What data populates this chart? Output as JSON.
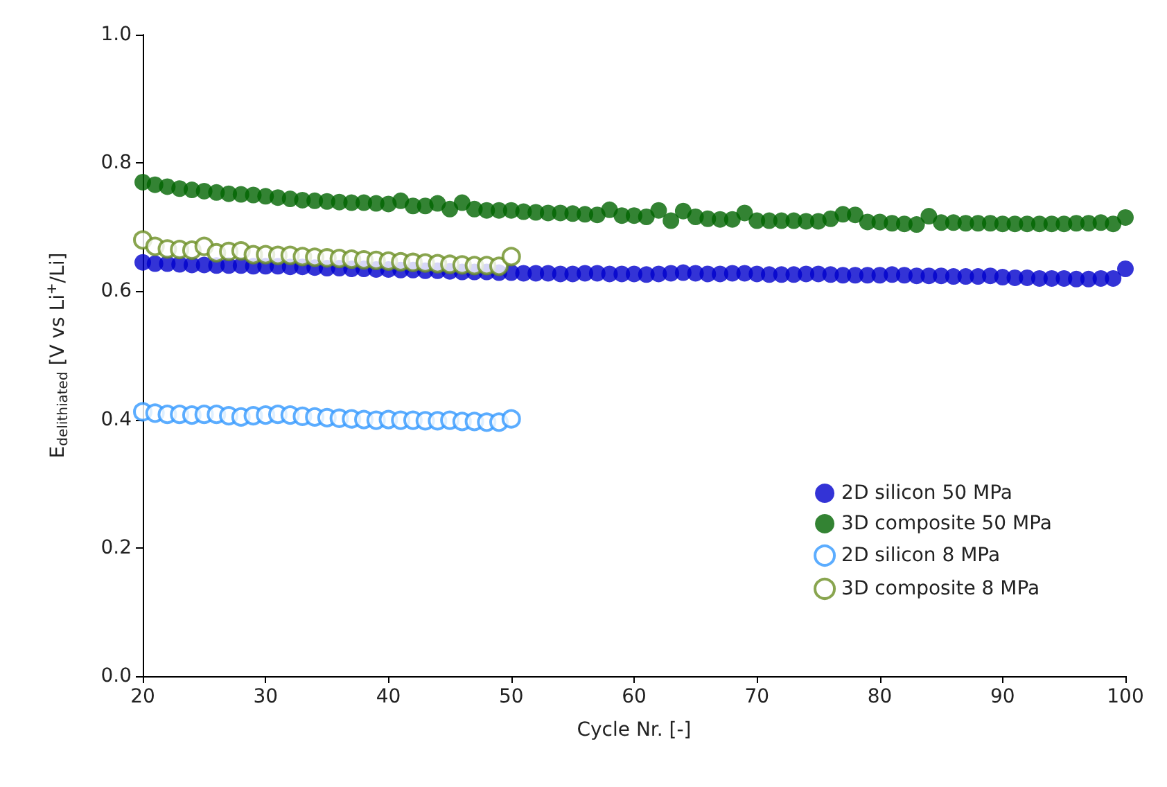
{
  "chart_data": {
    "type": "scatter",
    "xlabel": "Cycle Nr. [-]",
    "ylabel": "E$_{delithiated}$ [V vs Li$^{+}$/Li]",
    "x": [
      20,
      21,
      22,
      23,
      24,
      25,
      26,
      27,
      28,
      29,
      30,
      31,
      32,
      33,
      34,
      35,
      36,
      37,
      38,
      39,
      40,
      41,
      42,
      43,
      44,
      45,
      46,
      47,
      48,
      49,
      50,
      51,
      52,
      53,
      54,
      55,
      56,
      57,
      58,
      59,
      60,
      61,
      62,
      63,
      64,
      65,
      66,
      67,
      68,
      69,
      70,
      71,
      72,
      73,
      74,
      75,
      76,
      77,
      78,
      79,
      80,
      81,
      82,
      83,
      84,
      85,
      86,
      87,
      88,
      89,
      90,
      91,
      92,
      93,
      94,
      95,
      96,
      97,
      98,
      99,
      100
    ],
    "series": [
      {
        "name": "2D silicon 50 MPa",
        "color": "#0000cc",
        "marker": "circle",
        "values": [
          0.645,
          0.643,
          0.643,
          0.642,
          0.641,
          0.641,
          0.64,
          0.64,
          0.64,
          0.639,
          0.639,
          0.639,
          0.638,
          0.638,
          0.637,
          0.636,
          0.636,
          0.635,
          0.635,
          0.634,
          0.634,
          0.633,
          0.633,
          0.632,
          0.632,
          0.631,
          0.63,
          0.63,
          0.63,
          0.629,
          0.629,
          0.628,
          0.628,
          0.628,
          0.627,
          0.627,
          0.628,
          0.628,
          0.627,
          0.627,
          0.627,
          0.626,
          0.627,
          0.628,
          0.629,
          0.628,
          0.627,
          0.627,
          0.628,
          0.628,
          0.627,
          0.626,
          0.626,
          0.626,
          0.627,
          0.627,
          0.626,
          0.625,
          0.625,
          0.625,
          0.625,
          0.626,
          0.625,
          0.624,
          0.624,
          0.624,
          0.623,
          0.623,
          0.623,
          0.624,
          0.622,
          0.621,
          0.621,
          0.62,
          0.62,
          0.62,
          0.619,
          0.619,
          0.62,
          0.62,
          0.635
        ]
      },
      {
        "name": "3D composite 50 MPa",
        "color": "#006400",
        "marker": "circle",
        "values": [
          0.77,
          0.766,
          0.763,
          0.76,
          0.758,
          0.756,
          0.754,
          0.752,
          0.751,
          0.75,
          0.748,
          0.746,
          0.744,
          0.742,
          0.741,
          0.74,
          0.739,
          0.738,
          0.738,
          0.737,
          0.736,
          0.741,
          0.733,
          0.733,
          0.737,
          0.728,
          0.738,
          0.728,
          0.726,
          0.726,
          0.726,
          0.724,
          0.723,
          0.722,
          0.722,
          0.721,
          0.72,
          0.719,
          0.727,
          0.718,
          0.718,
          0.716,
          0.726,
          0.71,
          0.725,
          0.716,
          0.713,
          0.712,
          0.712,
          0.722,
          0.71,
          0.71,
          0.71,
          0.71,
          0.709,
          0.709,
          0.713,
          0.72,
          0.719,
          0.708,
          0.708,
          0.706,
          0.705,
          0.704,
          0.717,
          0.707,
          0.707,
          0.706,
          0.706,
          0.706,
          0.705,
          0.705,
          0.705,
          0.705,
          0.705,
          0.705,
          0.706,
          0.706,
          0.707,
          0.705,
          0.715
        ]
      },
      {
        "name": "2D silicon 8 MPa",
        "color": "#3399ff",
        "marker": "circle-open",
        "values": [
          0.412,
          0.41,
          0.408,
          0.408,
          0.407,
          0.408,
          0.408,
          0.406,
          0.404,
          0.406,
          0.407,
          0.408,
          0.407,
          0.405,
          0.404,
          0.403,
          0.402,
          0.401,
          0.4,
          0.399,
          0.4,
          0.399,
          0.399,
          0.398,
          0.398,
          0.399,
          0.397,
          0.397,
          0.396,
          0.396,
          0.401,
          null,
          null,
          null,
          null,
          null,
          null,
          null,
          null,
          null,
          null,
          null,
          null,
          null,
          null,
          null,
          null,
          null,
          null,
          null,
          null,
          null,
          null,
          null,
          null,
          null,
          null,
          null,
          null,
          null,
          null,
          null,
          null,
          null,
          null,
          null,
          null,
          null,
          null,
          null,
          null,
          null,
          null,
          null,
          null,
          null,
          null,
          null,
          null,
          null,
          null
        ]
      },
      {
        "name": "3D composite 8 MPa",
        "color": "#6b8e23",
        "marker": "circle-open",
        "values": [
          0.68,
          0.67,
          0.666,
          0.665,
          0.664,
          0.67,
          0.66,
          0.662,
          0.663,
          0.657,
          0.657,
          0.656,
          0.656,
          0.654,
          0.653,
          0.652,
          0.651,
          0.65,
          0.649,
          0.648,
          0.647,
          0.646,
          0.645,
          0.644,
          0.643,
          0.642,
          0.641,
          0.64,
          0.64,
          0.639,
          0.654,
          null,
          null,
          null,
          null,
          null,
          null,
          null,
          null,
          null,
          null,
          null,
          null,
          null,
          null,
          null,
          null,
          null,
          null,
          null,
          null,
          null,
          null,
          null,
          null,
          null,
          null,
          null,
          null,
          null,
          null,
          null,
          null,
          null,
          null,
          null,
          null,
          null,
          null,
          null,
          null,
          null,
          null,
          null,
          null,
          null,
          null,
          null,
          null,
          null,
          null
        ]
      }
    ],
    "xlim": [
      20,
      100
    ],
    "xticks": [
      20,
      30,
      40,
      50,
      60,
      70,
      80,
      90,
      100
    ],
    "ylim": [
      0.0,
      1.0
    ],
    "yticks": [
      {
        "value": 0,
        "label": "0.0"
      },
      0.2,
      0.4,
      0.6,
      0.8,
      {
        "value": 1,
        "label": "1.0"
      }
    ],
    "grid": false,
    "legend": "bottom right"
  }
}
